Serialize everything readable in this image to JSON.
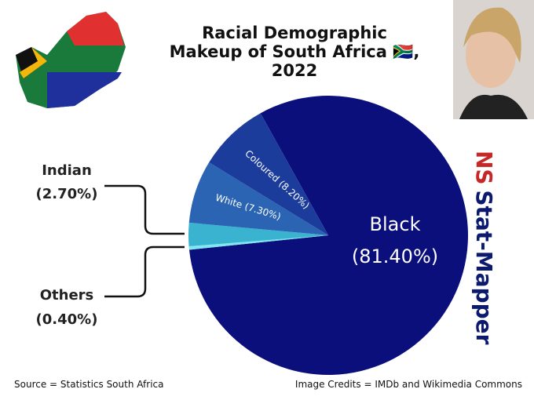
{
  "chart_data": {
    "type": "pie",
    "title": "Racial Demographic Makeup of South Africa 🇿🇦, 2022",
    "categories": [
      "Black",
      "Others",
      "Indian",
      "White",
      "Coloured"
    ],
    "values": [
      81.4,
      0.4,
      2.7,
      7.3,
      8.2
    ],
    "value_labels": [
      "(81.40%)",
      "(0.40%)",
      "(2.70%)",
      "(7.30%)",
      "(8.20%)"
    ],
    "colors": [
      "#0b0f7c",
      "#7fe6f2",
      "#3ab3d0",
      "#2b64b3",
      "#1c3c9c"
    ],
    "watermark": [
      "NS",
      "Stat-Mapper"
    ],
    "source": "Source = Statistics South Africa",
    "credits": "Image Credits = IMDb and Wikimedia Commons"
  }
}
